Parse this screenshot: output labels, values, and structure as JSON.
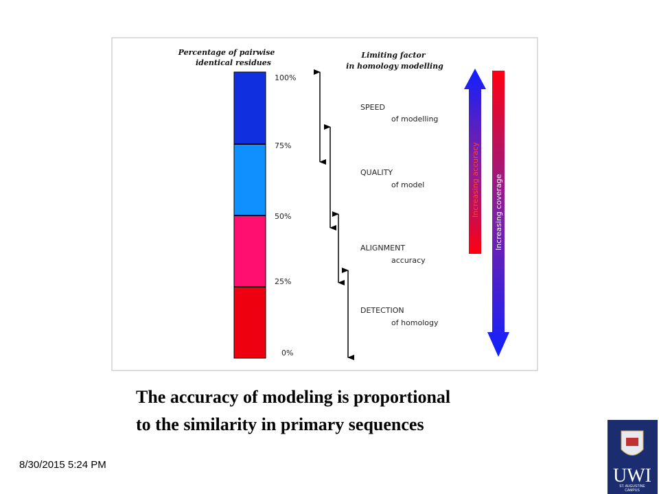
{
  "figure": {
    "left_title": [
      "Percentage of  pairwise",
      "identical residues"
    ],
    "right_title": [
      "Limiting factor",
      "in homology modelling"
    ],
    "percent_labels": [
      "100%",
      "75%",
      "50%",
      "25%",
      "0%"
    ],
    "factors": [
      {
        "name": "SPEED",
        "detail": "of modelling"
      },
      {
        "name": "QUALITY",
        "detail": "of model"
      },
      {
        "name": "ALIGNMENT",
        "detail": "accuracy"
      },
      {
        "name": "DETECTION",
        "detail": "of homology"
      }
    ],
    "accuracy_arrow": "Increasing accuracy",
    "coverage_arrow": "Increasing coverage"
  },
  "caption": [
    "The accuracy of modeling is proportional",
    "to the similarity in primary sequences"
  ],
  "footer": {
    "date": "8/30/2015 5:24 PM"
  },
  "logo": {
    "name": "UWI",
    "campus": [
      "ST. AUGUSTINE",
      "CAMPUS"
    ]
  }
}
